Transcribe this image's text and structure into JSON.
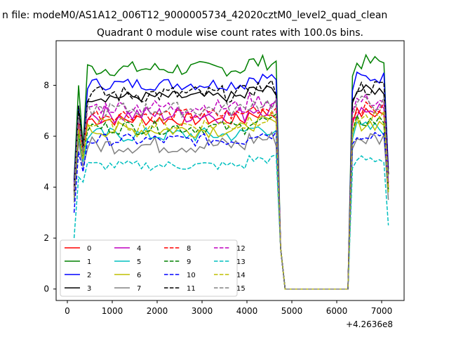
{
  "figure": {
    "suptitle": "n file: modeM0/AS1A12_006T12_9000005734_42020cztM0_level2_quad_clean",
    "offset_label": "+4.2636e8"
  },
  "chart_data": {
    "type": "line",
    "title": "Quadrant 0 module wise count rates with 100.0s bins.",
    "xlabel": "",
    "ylabel": "",
    "xlim": [
      -250,
      7500
    ],
    "ylim": [
      -0.45,
      9.75
    ],
    "xticks": [
      0,
      1000,
      2000,
      3000,
      4000,
      5000,
      6000,
      7000
    ],
    "yticks": [
      0,
      2,
      4,
      6,
      8
    ],
    "x_offset_note": "+4.2636e8",
    "x": [
      150,
      250,
      350,
      450,
      550,
      650,
      750,
      850,
      950,
      1050,
      1150,
      1250,
      1350,
      1450,
      1550,
      1650,
      1750,
      1850,
      1950,
      2050,
      2150,
      2250,
      2350,
      2450,
      2550,
      2650,
      2750,
      2850,
      2950,
      3050,
      3150,
      3250,
      3350,
      3450,
      3550,
      3650,
      3750,
      3850,
      3950,
      4050,
      4150,
      4250,
      4350,
      4450,
      4550,
      4650,
      4750,
      4850,
      4950,
      5050,
      5150,
      5250,
      5350,
      5450,
      5550,
      5650,
      5750,
      5850,
      5950,
      6050,
      6150,
      6250,
      6350,
      6450,
      6550,
      6650,
      6750,
      6850,
      6950,
      7050,
      7150
    ],
    "gap": {
      "start": 4850,
      "end": 6250,
      "value": 0
    },
    "legend": {
      "location": "lower-left",
      "columns": 4
    },
    "series": [
      {
        "name": "0",
        "color": "#ff0000",
        "dash": "solid",
        "levels": [
          4.0,
          6.4,
          5.6,
          6.8
        ],
        "amp": 0.25,
        "end": 4.0
      },
      {
        "name": "1",
        "color": "#008000",
        "dash": "solid",
        "levels": [
          4.3,
          8.0,
          5.6,
          8.8
        ],
        "amp": 0.3,
        "end": 4.5
      },
      {
        "name": "2",
        "color": "#0000ff",
        "dash": "solid",
        "levels": [
          4.2,
          7.2,
          5.5,
          8.2
        ],
        "amp": 0.25,
        "end": 4.7
      },
      {
        "name": "3",
        "color": "#000000",
        "dash": "solid",
        "levels": [
          4.0,
          7.0,
          5.5,
          7.7
        ],
        "amp": 0.22,
        "end": 4.5
      },
      {
        "name": "4",
        "color": "#bf00bf",
        "dash": "solid",
        "levels": [
          3.8,
          6.5,
          5.2,
          7.0
        ],
        "amp": 0.35,
        "end": 4.0
      },
      {
        "name": "5",
        "color": "#00bfbf",
        "dash": "solid",
        "levels": [
          3.5,
          6.0,
          5.0,
          6.2
        ],
        "amp": 0.3,
        "end": 3.8
      },
      {
        "name": "6",
        "color": "#bfbf00",
        "dash": "solid",
        "levels": [
          3.6,
          6.2,
          5.1,
          6.4
        ],
        "amp": 0.3,
        "end": 3.9
      },
      {
        "name": "7",
        "color": "#808080",
        "dash": "solid",
        "levels": [
          3.4,
          5.8,
          4.8,
          5.8
        ],
        "amp": 0.35,
        "end": 3.5
      },
      {
        "name": "8",
        "color": "#ff0000",
        "dash": "dashed",
        "levels": [
          3.9,
          6.6,
          5.4,
          7.0
        ],
        "amp": 0.25,
        "end": 4.1
      },
      {
        "name": "9",
        "color": "#008000",
        "dash": "dashed",
        "levels": [
          3.7,
          6.1,
          5.2,
          6.5
        ],
        "amp": 0.28,
        "end": 3.9
      },
      {
        "name": "10",
        "color": "#0000ff",
        "dash": "dashed",
        "levels": [
          3.0,
          5.4,
          4.6,
          6.0
        ],
        "amp": 0.25,
        "end": 4.2
      },
      {
        "name": "11",
        "color": "#000000",
        "dash": "dashed",
        "levels": [
          3.8,
          7.2,
          5.5,
          7.8
        ],
        "amp": 0.35,
        "end": 4.5
      },
      {
        "name": "12",
        "color": "#bf00bf",
        "dash": "dashed",
        "levels": [
          3.9,
          6.8,
          5.3,
          7.3
        ],
        "amp": 0.3,
        "end": 4.2
      },
      {
        "name": "13",
        "color": "#00bfbf",
        "dash": "dashed",
        "levels": [
          2.0,
          4.4,
          4.2,
          5.0
        ],
        "amp": 0.2,
        "end": 2.5
      },
      {
        "name": "14",
        "color": "#bfbf00",
        "dash": "dashed",
        "levels": [
          3.7,
          6.3,
          5.1,
          6.6
        ],
        "amp": 0.3,
        "end": 3.8
      },
      {
        "name": "15",
        "color": "#808080",
        "dash": "dashed",
        "levels": [
          3.7,
          6.8,
          5.3,
          7.2
        ],
        "amp": 0.3,
        "end": 4.3
      }
    ]
  }
}
